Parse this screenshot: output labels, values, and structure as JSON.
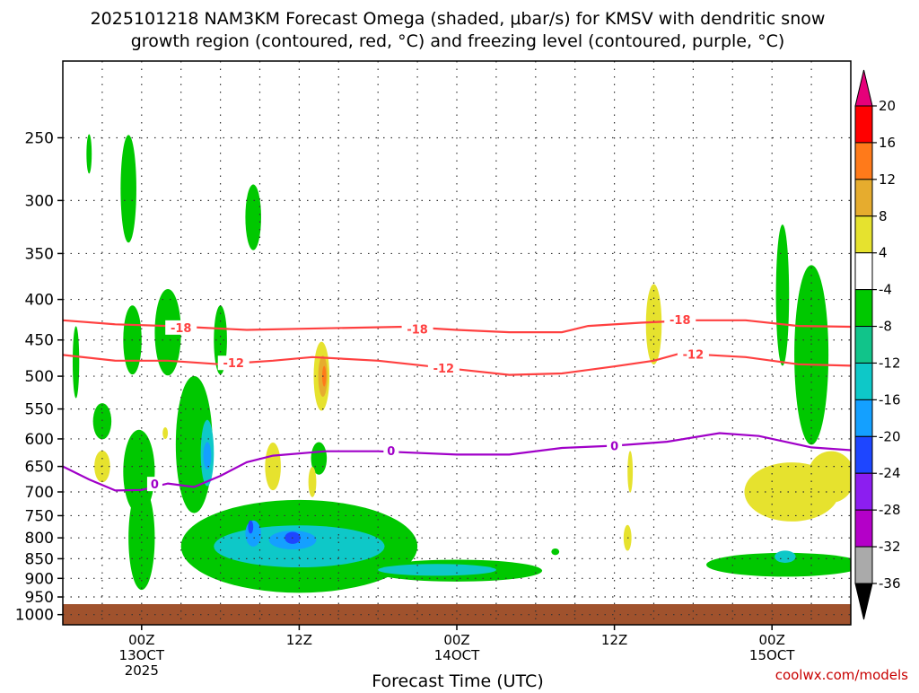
{
  "title_line1": "2025101218 NAM3KM Forecast Omega (shaded, μbar/s) for KMSV with dendritic snow",
  "title_line2": "growth region (contoured, red, °C) and freezing level (contoured, purple, °C)",
  "xlabel": "Forecast Time (UTC)",
  "credit": "coolwx.com/models",
  "y_ticks": [
    {
      "p": 250,
      "label": "250"
    },
    {
      "p": 300,
      "label": "300"
    },
    {
      "p": 350,
      "label": "350"
    },
    {
      "p": 400,
      "label": "400"
    },
    {
      "p": 450,
      "label": "450"
    },
    {
      "p": 500,
      "label": "500"
    },
    {
      "p": 550,
      "label": "550"
    },
    {
      "p": 600,
      "label": "600"
    },
    {
      "p": 650,
      "label": "650"
    },
    {
      "p": 700,
      "label": "700"
    },
    {
      "p": 750,
      "label": "750"
    },
    {
      "p": 800,
      "label": "800"
    },
    {
      "p": 850,
      "label": "850"
    },
    {
      "p": 900,
      "label": "900"
    },
    {
      "p": 950,
      "label": "950"
    },
    {
      "p": 1000,
      "label": "1000"
    }
  ],
  "x_ticks": [
    {
      "hour": 6,
      "lines": [
        "00Z",
        "13OCT",
        "2025"
      ]
    },
    {
      "hour": 18,
      "lines": [
        "12Z"
      ]
    },
    {
      "hour": 30,
      "lines": [
        "00Z",
        "14OCT"
      ]
    },
    {
      "hour": 42,
      "lines": [
        "12Z"
      ]
    },
    {
      "hour": 54,
      "lines": [
        "00Z",
        "15OCT"
      ]
    }
  ],
  "colorbar": {
    "labels": [
      "20",
      "16",
      "12",
      "8",
      "4",
      "-4",
      "-8",
      "-12",
      "-16",
      "-20",
      "-24",
      "-28",
      "-32",
      "-36"
    ],
    "colors": [
      "#ff0000",
      "#ff7a1a",
      "#e6ac2e",
      "#e6e22e",
      "#ffffff",
      "#00c800",
      "#11c48a",
      "#0ec8c8",
      "#14a0ff",
      "#1e46ff",
      "#8c1ef0",
      "#b400c8",
      "#aaaaaa"
    ],
    "top_arrow_color": "#e6007a",
    "bottom_arrow_color": "#000000"
  },
  "chart_data": {
    "type": "heatmap",
    "xlim_hours": [
      0,
      60
    ],
    "ylim_hPa": [
      200,
      1030
    ],
    "y_scale": "log-pressure",
    "terrain_top_hPa": 970,
    "terrain_color": "#a0522d",
    "contours": [
      {
        "label": "-18",
        "color": "#ff4040",
        "points": [
          [
            0,
            425
          ],
          [
            4,
            430
          ],
          [
            8,
            432
          ],
          [
            14,
            437
          ],
          [
            20,
            435
          ],
          [
            26,
            433
          ],
          [
            30,
            437
          ],
          [
            34,
            440
          ],
          [
            38,
            440
          ],
          [
            40,
            432
          ],
          [
            44,
            428
          ],
          [
            48,
            425
          ],
          [
            52,
            425
          ],
          [
            56,
            432
          ],
          [
            60,
            433
          ]
        ],
        "label_at": [
          [
            9,
            434
          ],
          [
            27,
            436
          ],
          [
            47,
            424
          ]
        ]
      },
      {
        "label": "-12",
        "color": "#ff4040",
        "points": [
          [
            0,
            470
          ],
          [
            4,
            478
          ],
          [
            8,
            478
          ],
          [
            12,
            483
          ],
          [
            16,
            478
          ],
          [
            19,
            473
          ],
          [
            24,
            478
          ],
          [
            30,
            490
          ],
          [
            34,
            498
          ],
          [
            38,
            496
          ],
          [
            42,
            486
          ],
          [
            45,
            478
          ],
          [
            47,
            468
          ],
          [
            52,
            473
          ],
          [
            56,
            483
          ],
          [
            60,
            485
          ]
        ],
        "label_at": [
          [
            13,
            481
          ],
          [
            29,
            488
          ],
          [
            48,
            469
          ]
        ]
      },
      {
        "label": "0",
        "color": "#a000c8",
        "points": [
          [
            0,
            650
          ],
          [
            2,
            675
          ],
          [
            4,
            697
          ],
          [
            6,
            696
          ],
          [
            8,
            683
          ],
          [
            10,
            690
          ],
          [
            12,
            668
          ],
          [
            14,
            642
          ],
          [
            16,
            630
          ],
          [
            20,
            622
          ],
          [
            24,
            622
          ],
          [
            30,
            628
          ],
          [
            34,
            628
          ],
          [
            38,
            616
          ],
          [
            42,
            612
          ],
          [
            46,
            605
          ],
          [
            50,
            590
          ],
          [
            53,
            595
          ],
          [
            57,
            615
          ],
          [
            60,
            620
          ]
        ],
        "label_at": [
          [
            7,
            684
          ],
          [
            25,
            621
          ],
          [
            42,
            612
          ]
        ]
      }
    ],
    "shaded_regions": [
      {
        "level": "-4",
        "color": "#00c800",
        "x_center": 2.0,
        "p_center": 262,
        "x_radius": 0.2,
        "p_radius": 15
      },
      {
        "level": "-4",
        "color": "#00c800",
        "x_center": 5.0,
        "p_center": 290,
        "x_radius": 0.6,
        "p_radius": 45
      },
      {
        "level": "-4",
        "color": "#00c800",
        "x_center": 14.5,
        "p_center": 315,
        "x_radius": 0.6,
        "p_radius": 30
      },
      {
        "level": "-4",
        "color": "#00c800",
        "x_center": 1.0,
        "p_center": 480,
        "x_radius": 0.25,
        "p_radius": 50
      },
      {
        "level": "-4",
        "color": "#00c800",
        "x_center": 5.3,
        "p_center": 450,
        "x_radius": 0.7,
        "p_radius": 45
      },
      {
        "level": "-4",
        "color": "#00c800",
        "x_center": 8.0,
        "p_center": 440,
        "x_radius": 1.0,
        "p_radius": 55
      },
      {
        "level": "-4",
        "color": "#00c800",
        "x_center": 12.0,
        "p_center": 450,
        "x_radius": 0.5,
        "p_radius": 45
      },
      {
        "level": "-4",
        "color": "#00c800",
        "x_center": 3.0,
        "p_center": 570,
        "x_radius": 0.7,
        "p_radius": 30
      },
      {
        "level": "-4",
        "color": "#00c800",
        "x_center": 5.8,
        "p_center": 660,
        "x_radius": 1.2,
        "p_radius": 80
      },
      {
        "level": "-4",
        "color": "#00c800",
        "x_center": 10.0,
        "p_center": 610,
        "x_radius": 1.4,
        "p_radius": 120
      },
      {
        "level": "-4",
        "color": "#00c800",
        "x_center": 6.0,
        "p_center": 800,
        "x_radius": 1.0,
        "p_radius": 120
      },
      {
        "level": "-4",
        "color": "#00c800",
        "x_center": 18.0,
        "p_center": 820,
        "x_radius": 9.0,
        "p_radius": 110
      },
      {
        "level": "-4",
        "color": "#00c800",
        "x_center": 30.0,
        "p_center": 880,
        "x_radius": 6.5,
        "p_radius": 28
      },
      {
        "level": "-4",
        "color": "#00c800",
        "x_center": 19.5,
        "p_center": 635,
        "x_radius": 0.6,
        "p_radius": 30
      },
      {
        "level": "-4",
        "color": "#00c800",
        "x_center": 37.5,
        "p_center": 833,
        "x_radius": 0.3,
        "p_radius": 8
      },
      {
        "level": "-4",
        "color": "#00c800",
        "x_center": 54.8,
        "p_center": 395,
        "x_radius": 0.5,
        "p_radius": 80
      },
      {
        "level": "-4",
        "color": "#00c800",
        "x_center": 57.0,
        "p_center": 470,
        "x_radius": 1.3,
        "p_radius": 120
      },
      {
        "level": "-4",
        "color": "#00c800",
        "x_center": 55.0,
        "p_center": 865,
        "x_radius": 6.0,
        "p_radius": 30
      },
      {
        "level": "-12",
        "color": "#0ec8c8",
        "x_center": 11.0,
        "p_center": 625,
        "x_radius": 0.5,
        "p_radius": 60
      },
      {
        "level": "-12",
        "color": "#0ec8c8",
        "x_center": 18.0,
        "p_center": 820,
        "x_radius": 6.5,
        "p_radius": 50
      },
      {
        "level": "-12",
        "color": "#0ec8c8",
        "x_center": 28.5,
        "p_center": 878,
        "x_radius": 4.5,
        "p_radius": 15
      },
      {
        "level": "-12",
        "color": "#0ec8c8",
        "x_center": 55.0,
        "p_center": 845,
        "x_radius": 0.8,
        "p_radius": 15
      },
      {
        "level": "-16",
        "color": "#14a0ff",
        "x_center": 14.5,
        "p_center": 790,
        "x_radius": 0.6,
        "p_radius": 30
      },
      {
        "level": "-16",
        "color": "#14a0ff",
        "x_center": 17.5,
        "p_center": 805,
        "x_radius": 1.8,
        "p_radius": 22
      },
      {
        "level": "-16",
        "color": "#14a0ff",
        "x_center": 11.0,
        "p_center": 630,
        "x_radius": 0.3,
        "p_radius": 25
      },
      {
        "level": "-20",
        "color": "#1e46ff",
        "x_center": 17.5,
        "p_center": 800,
        "x_radius": 0.6,
        "p_radius": 14
      },
      {
        "level": "-20",
        "color": "#1e46ff",
        "x_center": 14.3,
        "p_center": 775,
        "x_radius": 0.2,
        "p_radius": 15
      },
      {
        "level": "4",
        "color": "#e6e22e",
        "x_center": 3.0,
        "p_center": 650,
        "x_radius": 0.6,
        "p_radius": 30
      },
      {
        "level": "4",
        "color": "#e6e22e",
        "x_center": 7.8,
        "p_center": 590,
        "x_radius": 0.2,
        "p_radius": 10
      },
      {
        "level": "4",
        "color": "#e6e22e",
        "x_center": 16.0,
        "p_center": 650,
        "x_radius": 0.6,
        "p_radius": 45
      },
      {
        "level": "4",
        "color": "#e6e22e",
        "x_center": 19.0,
        "p_center": 680,
        "x_radius": 0.3,
        "p_radius": 30
      },
      {
        "level": "4",
        "color": "#e6e22e",
        "x_center": 19.7,
        "p_center": 500,
        "x_radius": 0.6,
        "p_radius": 50
      },
      {
        "level": "4",
        "color": "#e6e22e",
        "x_center": 45.0,
        "p_center": 430,
        "x_radius": 0.6,
        "p_radius": 50
      },
      {
        "level": "4",
        "color": "#e6e22e",
        "x_center": 43.2,
        "p_center": 660,
        "x_radius": 0.2,
        "p_radius": 40
      },
      {
        "level": "4",
        "color": "#e6e22e",
        "x_center": 43.0,
        "p_center": 800,
        "x_radius": 0.3,
        "p_radius": 30
      },
      {
        "level": "4",
        "color": "#e6e22e",
        "x_center": 55.5,
        "p_center": 700,
        "x_radius": 3.6,
        "p_radius": 60
      },
      {
        "level": "4",
        "color": "#e6e22e",
        "x_center": 58.5,
        "p_center": 670,
        "x_radius": 1.8,
        "p_radius": 50
      },
      {
        "level": "8",
        "color": "#e6ac2e",
        "x_center": 19.8,
        "p_center": 500,
        "x_radius": 0.35,
        "p_radius": 30
      },
      {
        "level": "12",
        "color": "#ff7a1a",
        "x_center": 19.9,
        "p_center": 500,
        "x_radius": 0.15,
        "p_radius": 15
      }
    ]
  }
}
